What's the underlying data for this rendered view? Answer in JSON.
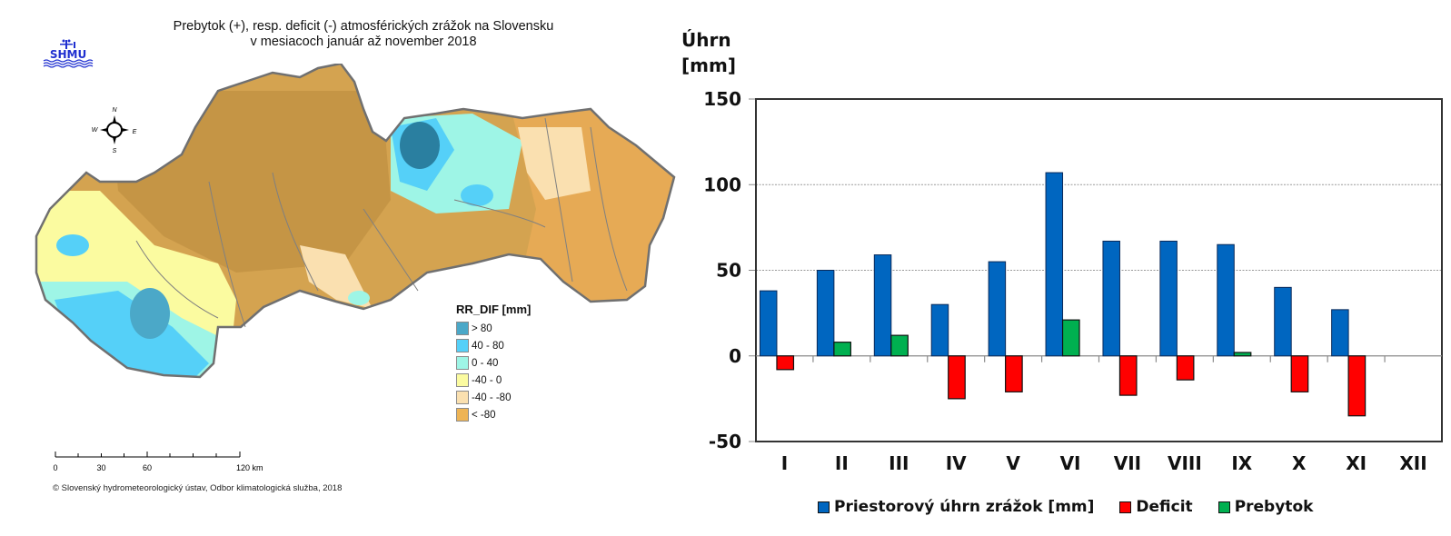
{
  "map": {
    "title_line1": "Prebytok (+), resp. deficit (-) atmosférických zrážok na Slovensku",
    "title_line2": "v mesiacoch január až november 2018",
    "logo_text": "SHMU",
    "compass": {
      "n": "N",
      "s": "S",
      "e": "E",
      "w": "W"
    },
    "legend": {
      "title": "RR_DIF [mm]",
      "items": [
        {
          "label": "> 80",
          "color": "#4ba8c8"
        },
        {
          "label": "40 - 80",
          "color": "#55d0f8"
        },
        {
          "label": "0 - 40",
          "color": "#9ef5e6"
        },
        {
          "label": "-40 - 0",
          "color": "#fbfba0"
        },
        {
          "label": "-40 - -80",
          "color": "#fae0b0"
        },
        {
          "label": "< -80",
          "color": "#eeb455"
        }
      ]
    },
    "scale_bar": {
      "ticks": [
        "0",
        "30",
        "60",
        "120 km"
      ]
    },
    "credit": "© Slovenský hydrometeorologický ústav, Odbor klimatologická služba, 2018"
  },
  "chart_data": {
    "type": "bar",
    "title": "",
    "ylabel_line1": "Úhrn",
    "ylabel_line2": "[mm]",
    "xlabel": "",
    "categories": [
      "I",
      "II",
      "III",
      "IV",
      "V",
      "VI",
      "VII",
      "VIII",
      "IX",
      "X",
      "XI",
      "XII"
    ],
    "ylim": [
      -50,
      150
    ],
    "yticks": [
      -50,
      0,
      50,
      100,
      150
    ],
    "ytick_labels": [
      "-50",
      "0",
      "50",
      "100",
      "150"
    ],
    "grid": true,
    "legend_position": "bottom",
    "series": [
      {
        "name": "Priestorový úhrn zrážok [mm]",
        "color": "#0066c0",
        "values": [
          38,
          50,
          59,
          30,
          55,
          107,
          67,
          67,
          65,
          40,
          27,
          null
        ]
      },
      {
        "name": "Deficit",
        "color": "#ff0000",
        "values": [
          -8,
          0,
          0,
          -25,
          -21,
          0,
          -23,
          -14,
          0,
          -21,
          -35,
          null
        ]
      },
      {
        "name": "Prebytok",
        "color": "#00b050",
        "values": [
          0,
          8,
          12,
          0,
          0,
          21,
          0,
          0,
          2,
          0,
          0,
          null
        ]
      }
    ]
  }
}
